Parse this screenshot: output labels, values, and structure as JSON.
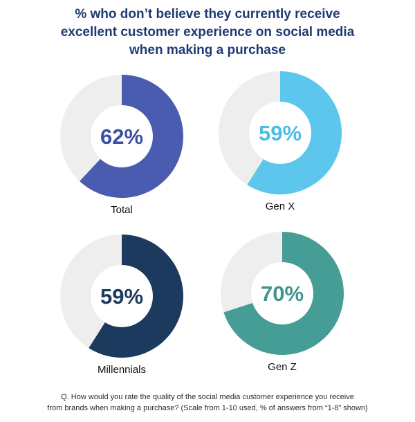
{
  "title_lines": [
    "% who don’t believe they currently receive",
    "excellent customer experience on social media",
    "when making a purchase"
  ],
  "footnote_lines": [
    "Q. How would you rate the quality of the social media customer experience you receive",
    "from brands when making a purchase? (Scale from 1-10 used, % of answers from “1-8” shown)"
  ],
  "colors": {
    "title": "#1f3a73",
    "track": "#eeeeee",
    "label": "#111111"
  },
  "chart_data": [
    {
      "type": "pie",
      "label": "Total",
      "value": 62,
      "value_label": "62%",
      "color": "#4a5caf",
      "text_color": "#3d4fa3"
    },
    {
      "type": "pie",
      "label": "Gen X",
      "value": 59,
      "value_label": "59%",
      "color": "#5cc6ec",
      "text_color": "#4cbce6"
    },
    {
      "type": "pie",
      "label": "Millennials",
      "value": 59,
      "value_label": "59%",
      "color": "#1b3a5e",
      "text_color": "#1b3a5e"
    },
    {
      "type": "pie",
      "label": "Gen Z",
      "value": 70,
      "value_label": "70%",
      "color": "#459d95",
      "text_color": "#3f958d"
    }
  ]
}
